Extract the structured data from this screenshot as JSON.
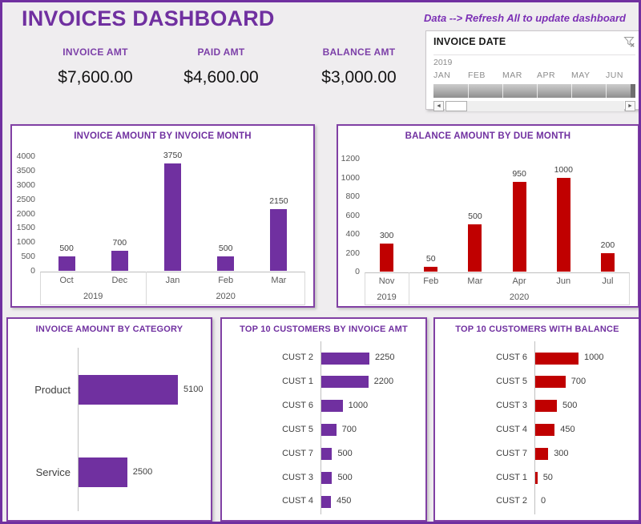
{
  "header": {
    "title": "INVOICES DASHBOARD",
    "refresh_hint": "Data --> Refresh All to update dashboard"
  },
  "kpis": [
    {
      "label": "INVOICE AMT",
      "value": "$7,600.00"
    },
    {
      "label": "PAID AMT",
      "value": "$4,600.00"
    },
    {
      "label": "BALANCE AMT",
      "value": "$3,000.00"
    }
  ],
  "timeline_slicer": {
    "title": "INVOICE DATE",
    "year": "2019",
    "months": [
      "JAN",
      "FEB",
      "MAR",
      "APR",
      "MAY",
      "JUN"
    ],
    "partial_next_label": ".",
    "clear_filter_icon": "funnel-x-icon",
    "scrollbar": {
      "left_arrow": "◄",
      "right_arrow": "►"
    }
  },
  "colors": {
    "accent_purple": "#7030A0",
    "bar_purple": "#7030A0",
    "bar_red": "#C00000",
    "page_background": "#EFEDEF",
    "chart_background": "#FFFFFF",
    "axis_text": "#595959",
    "data_label_text": "#404040"
  },
  "chart_data": [
    {
      "id": "invoice_amount_by_invoice_month",
      "type": "bar",
      "orientation": "vertical",
      "title": "INVOICE AMOUNT BY INVOICE MONTH",
      "categories": [
        "Oct",
        "Dec",
        "Jan",
        "Feb",
        "Mar"
      ],
      "group_labels": [
        {
          "label": "2019",
          "span": 2
        },
        {
          "label": "2020",
          "span": 3
        }
      ],
      "values": [
        500,
        700,
        3750,
        500,
        2150
      ],
      "bar_color": "#7030A0",
      "ylim": [
        0,
        4000
      ],
      "ytick_step": 500,
      "grid": false,
      "data_labels": true,
      "legend": "none"
    },
    {
      "id": "balance_amount_by_due_month",
      "type": "bar",
      "orientation": "vertical",
      "title": "BALANCE AMOUNT BY DUE MONTH",
      "categories": [
        "Nov",
        "Feb",
        "Mar",
        "Apr",
        "Jun",
        "Jul"
      ],
      "group_labels": [
        {
          "label": "2019",
          "span": 1
        },
        {
          "label": "2020",
          "span": 5
        }
      ],
      "values": [
        300,
        50,
        500,
        950,
        1000,
        200
      ],
      "bar_color": "#C00000",
      "ylim": [
        0,
        1200
      ],
      "ytick_step": 200,
      "grid": false,
      "data_labels": true,
      "legend": "none"
    },
    {
      "id": "invoice_amount_by_category",
      "type": "bar",
      "orientation": "horizontal",
      "title": "INVOICE AMOUNT BY CATEGORY",
      "categories": [
        "Product",
        "Service"
      ],
      "values": [
        5100,
        2500
      ],
      "bar_color": "#7030A0",
      "xmax": 5100,
      "grid": false,
      "data_labels": true,
      "legend": "none"
    },
    {
      "id": "top_10_customers_by_invoice_amt",
      "type": "bar",
      "orientation": "horizontal",
      "title": "TOP 10 CUSTOMERS BY INVOICE AMT",
      "categories": [
        "CUST 2",
        "CUST 1",
        "CUST 6",
        "CUST 5",
        "CUST 7",
        "CUST 3",
        "CUST 4"
      ],
      "values": [
        2250,
        2200,
        1000,
        700,
        500,
        500,
        450
      ],
      "bar_color": "#7030A0",
      "xmax": 2250,
      "grid": false,
      "data_labels": true,
      "legend": "none"
    },
    {
      "id": "top_10_customers_with_balance",
      "type": "bar",
      "orientation": "horizontal",
      "title": "TOP 10 CUSTOMERS WITH BALANCE",
      "categories": [
        "CUST 6",
        "CUST 5",
        "CUST 3",
        "CUST 4",
        "CUST 7",
        "CUST 1",
        "CUST 2"
      ],
      "values": [
        1000,
        700,
        500,
        450,
        300,
        50,
        0
      ],
      "bar_color": "#C00000",
      "xmax": 1000,
      "grid": false,
      "data_labels": true,
      "legend": "none"
    }
  ]
}
